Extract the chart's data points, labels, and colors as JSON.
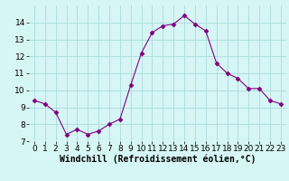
{
  "x": [
    0,
    1,
    2,
    3,
    4,
    5,
    6,
    7,
    8,
    9,
    10,
    11,
    12,
    13,
    14,
    15,
    16,
    17,
    18,
    19,
    20,
    21,
    22,
    23
  ],
  "y": [
    9.4,
    9.2,
    8.7,
    7.4,
    7.7,
    7.4,
    7.6,
    8.0,
    8.3,
    10.3,
    12.2,
    13.4,
    13.8,
    13.9,
    14.4,
    13.9,
    13.5,
    11.6,
    11.0,
    10.7,
    10.1,
    10.1,
    9.4,
    9.2
  ],
  "line_color": "#800080",
  "marker": "D",
  "marker_size": 2.5,
  "bg_color": "#d6f5f5",
  "grid_color": "#aadddd",
  "xlabel": "Windchill (Refroidissement éolien,°C)",
  "xlabel_fontsize": 7,
  "tick_fontsize": 6.5,
  "ylim": [
    7,
    15
  ],
  "xlim": [
    -0.5,
    23.5
  ],
  "yticks": [
    7,
    8,
    9,
    10,
    11,
    12,
    13,
    14
  ],
  "xticks": [
    0,
    1,
    2,
    3,
    4,
    5,
    6,
    7,
    8,
    9,
    10,
    11,
    12,
    13,
    14,
    15,
    16,
    17,
    18,
    19,
    20,
    21,
    22,
    23
  ]
}
